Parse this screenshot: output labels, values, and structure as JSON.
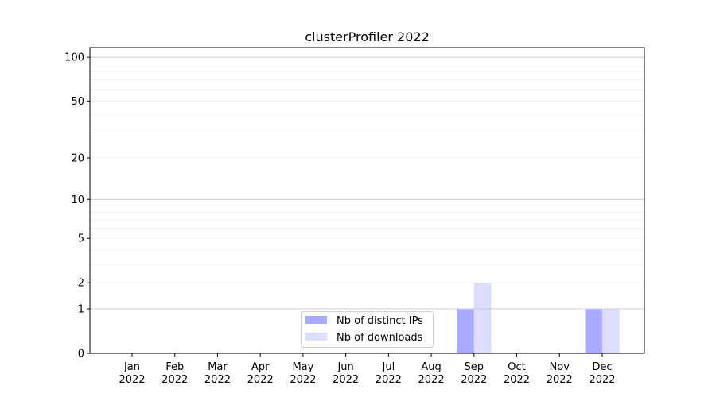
{
  "chart_data": {
    "type": "bar",
    "title": "clusterProfiler 2022",
    "xlabel": "",
    "ylabel": "",
    "yscale": "log(1+y)",
    "ylim": [
      0,
      116
    ],
    "yticks": [
      0,
      1,
      2,
      5,
      10,
      20,
      50,
      100
    ],
    "ytick_labels": [
      "0",
      "1",
      "2",
      "5",
      "10",
      "20",
      "50",
      "100"
    ],
    "grid": true,
    "legend_position": "bottom-center",
    "categories": [
      "Jan\n2022",
      "Feb\n2022",
      "Mar\n2022",
      "Apr\n2022",
      "May\n2022",
      "Jun\n2022",
      "Jul\n2022",
      "Aug\n2022",
      "Sep\n2022",
      "Oct\n2022",
      "Nov\n2022",
      "Dec\n2022"
    ],
    "series": [
      {
        "name": "Nb of distinct IPs",
        "color": "#aaaaff",
        "values": [
          0,
          0,
          0,
          0,
          0,
          0,
          0,
          0,
          1,
          0,
          0,
          1
        ]
      },
      {
        "name": "Nb of downloads",
        "color": "#ddddff",
        "values": [
          0,
          0,
          0,
          0,
          0,
          0,
          0,
          0,
          2,
          0,
          0,
          1
        ]
      }
    ]
  }
}
